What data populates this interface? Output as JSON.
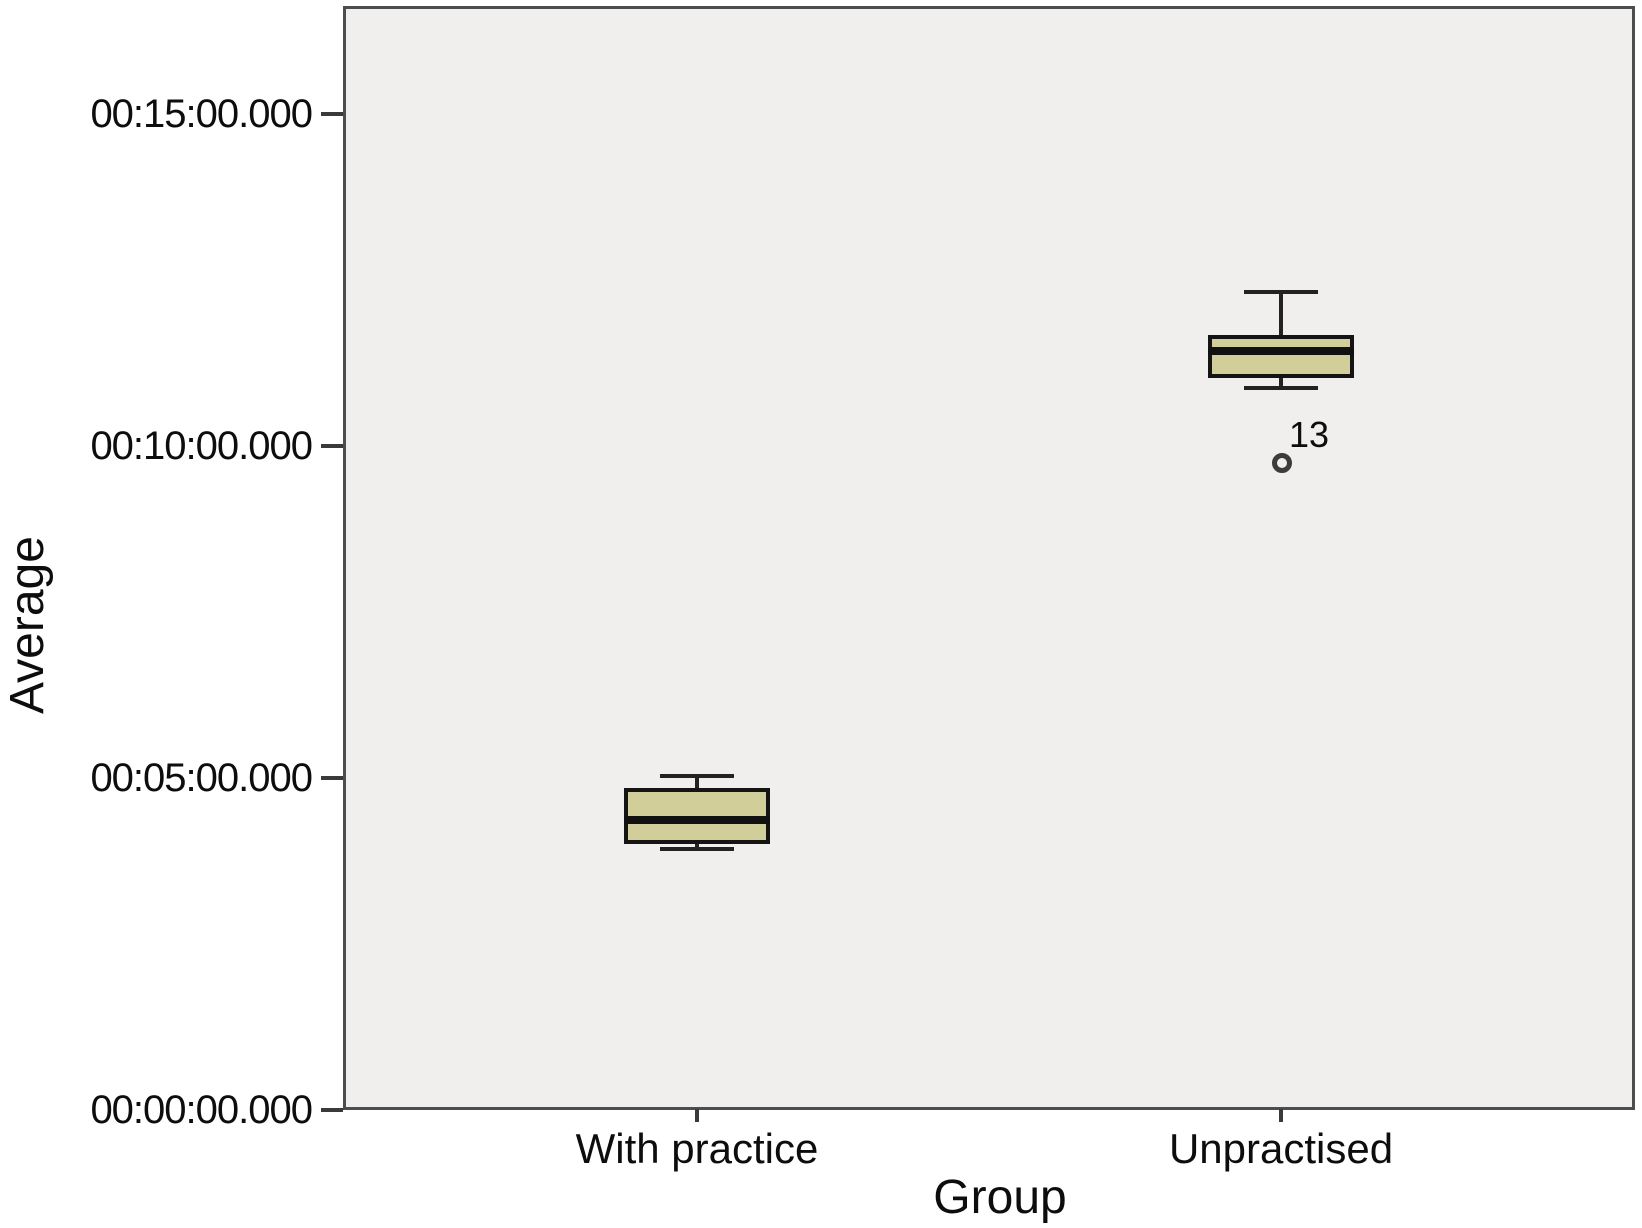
{
  "figure": {
    "ylabel": "Average",
    "xlabel": "Group"
  },
  "chart_data": {
    "type": "boxplot",
    "title": "",
    "xlabel": "Group",
    "ylabel": "Average",
    "legend": false,
    "grid": false,
    "y_axis": {
      "format": "hh:mm:ss.mmm",
      "min_sec": 0,
      "max_visible_sec": 997,
      "ticks": [
        {
          "sec": 0,
          "label": "00:00:00.000"
        },
        {
          "sec": 300,
          "label": "00:05:00.000"
        },
        {
          "sec": 600,
          "label": "00:10:00.000"
        },
        {
          "sec": 900,
          "label": "00:15:00.000"
        }
      ]
    },
    "categories": [
      "With practice",
      "Unpractised"
    ],
    "series": [
      {
        "category": "With practice",
        "whisker_low": {
          "sec": 236,
          "time": "00:03:56"
        },
        "q1": {
          "sec": 240,
          "time": "00:04:00"
        },
        "median": {
          "sec": 262,
          "time": "00:04:22"
        },
        "q3": {
          "sec": 291,
          "time": "00:04:51"
        },
        "whisker_high": {
          "sec": 302,
          "time": "00:05:02"
        },
        "outliers": []
      },
      {
        "category": "Unpractised",
        "whisker_low": {
          "sec": 652,
          "time": "00:10:52"
        },
        "q1": {
          "sec": 661,
          "time": "00:11:01"
        },
        "median": {
          "sec": 686,
          "time": "00:11:26"
        },
        "q3": {
          "sec": 700,
          "time": "00:11:40"
        },
        "whisker_high": {
          "sec": 739,
          "time": "00:12:19"
        },
        "outliers": [
          {
            "case_label": "13",
            "sec": 585,
            "time": "00:09:45"
          }
        ]
      }
    ],
    "colors": {
      "box_fill": "#d2ce9a",
      "box_border": "#141414",
      "plot_background": "#f0efed",
      "frame": "#4d4d4d",
      "text": "#0d0d0d"
    }
  }
}
